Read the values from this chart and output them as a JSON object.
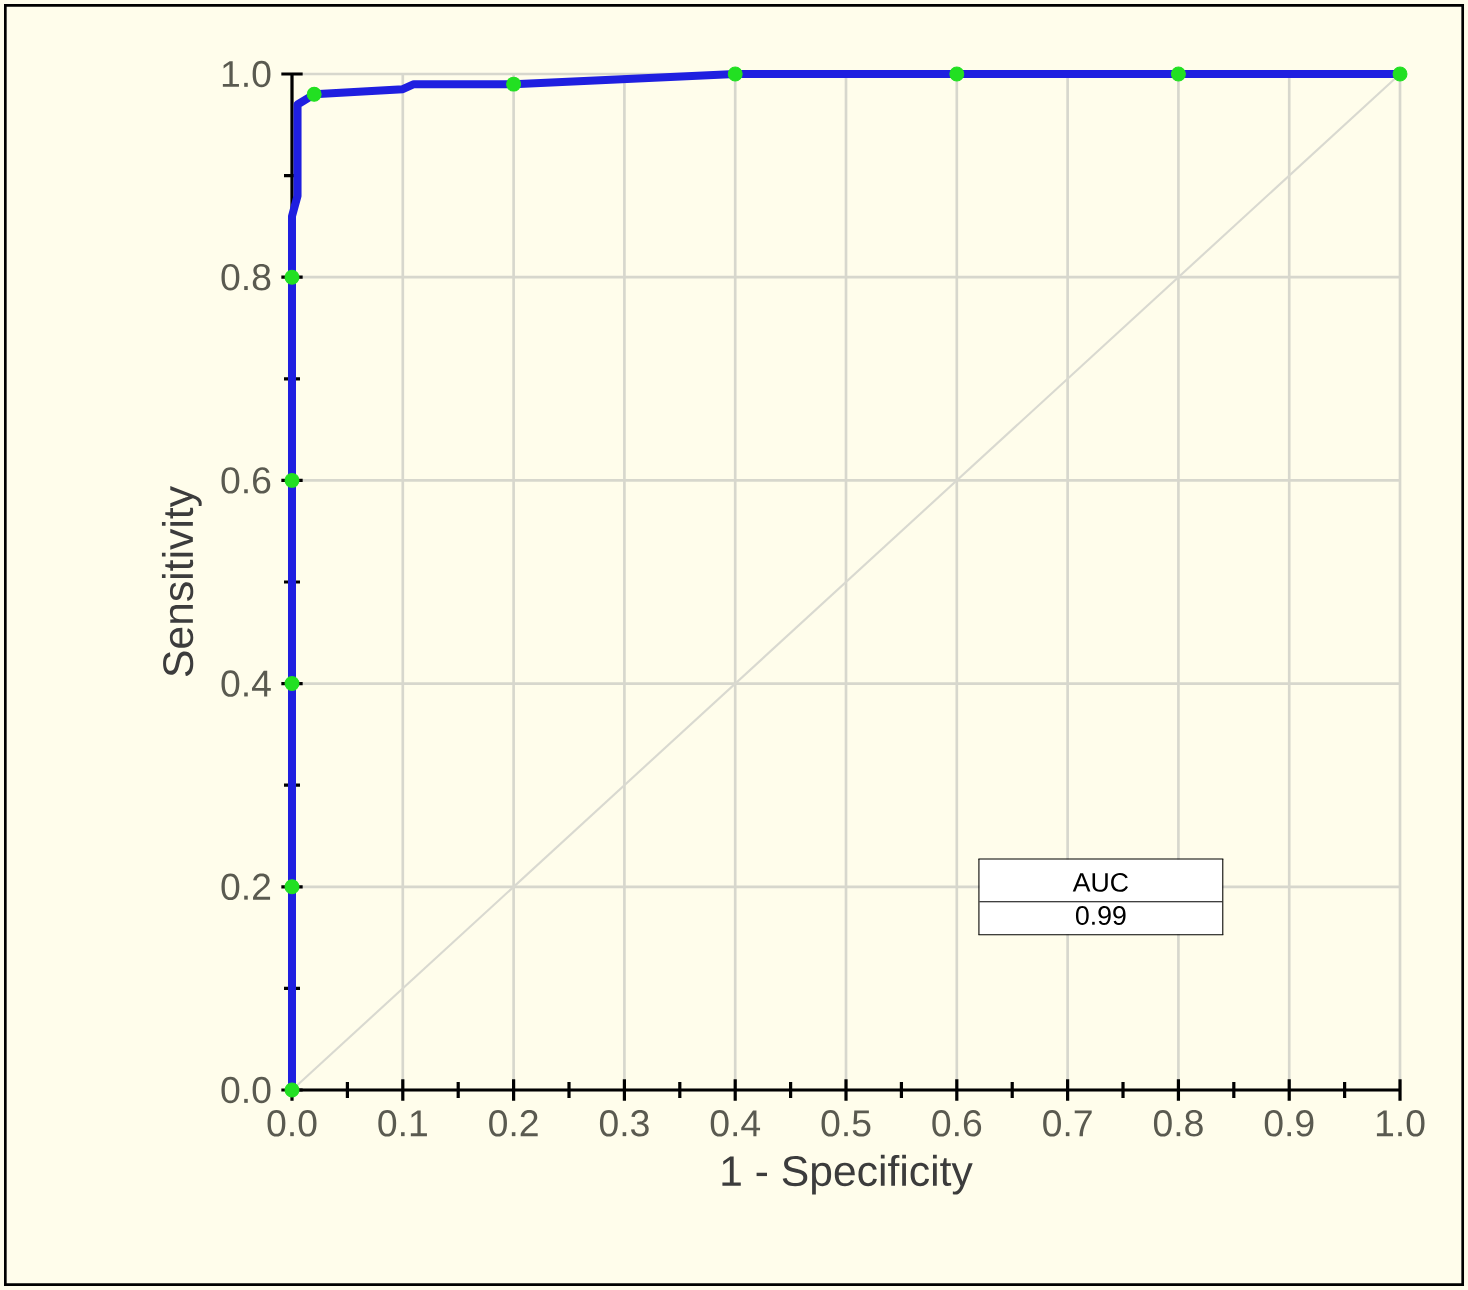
{
  "chart_data": {
    "type": "line",
    "xlabel": "1 - Specificity",
    "ylabel": "Sensitivity",
    "xlim": [
      0,
      1
    ],
    "ylim": [
      0,
      1
    ],
    "xticks": [
      {
        "value": 0,
        "label": "0.0"
      },
      {
        "value": 0.1,
        "label": "0.1"
      },
      {
        "value": 0.2,
        "label": "0.2"
      },
      {
        "value": 0.3,
        "label": "0.3"
      },
      {
        "value": 0.4,
        "label": "0.4"
      },
      {
        "value": 0.5,
        "label": "0.5"
      },
      {
        "value": 0.6,
        "label": "0.6"
      },
      {
        "value": 0.7,
        "label": "0.7"
      },
      {
        "value": 0.8,
        "label": "0.8"
      },
      {
        "value": 0.9,
        "label": "0.9"
      },
      {
        "value": 1,
        "label": "1.0"
      }
    ],
    "yticks": [
      {
        "value": 0,
        "label": "0.0"
      },
      {
        "value": 0.2,
        "label": "0.2"
      },
      {
        "value": 0.4,
        "label": "0.4"
      },
      {
        "value": 0.6,
        "label": "0.6"
      },
      {
        "value": 0.8,
        "label": "0.8"
      },
      {
        "value": 1,
        "label": "1.0"
      }
    ],
    "grid": true,
    "series": [
      {
        "color": "#d9d9d0",
        "x": [
          0,
          1
        ],
        "values": [
          0,
          1
        ]
      },
      {
        "color": "#1f1fe0",
        "x": [
          0,
          0,
          0,
          0.005,
          0.005,
          0.02,
          0.1,
          0.11,
          0.2,
          0.4,
          0.6,
          0.8,
          1
        ],
        "values": [
          0,
          0.8,
          0.86,
          0.88,
          0.97,
          0.98,
          0.985,
          0.99,
          0.99,
          1,
          1,
          1,
          1
        ]
      },
      {
        "type": "scatter",
        "color": "#22e022",
        "marker": "circle",
        "x": [
          0,
          0,
          0,
          0,
          0,
          0.02,
          0.2,
          0.4,
          0.6,
          0.8,
          1
        ],
        "values": [
          0,
          0.2,
          0.4,
          0.6,
          0.8,
          0.98,
          0.99,
          1,
          1,
          1,
          1
        ]
      }
    ],
    "annotations": [
      "AUC",
      "0.99"
    ]
  }
}
